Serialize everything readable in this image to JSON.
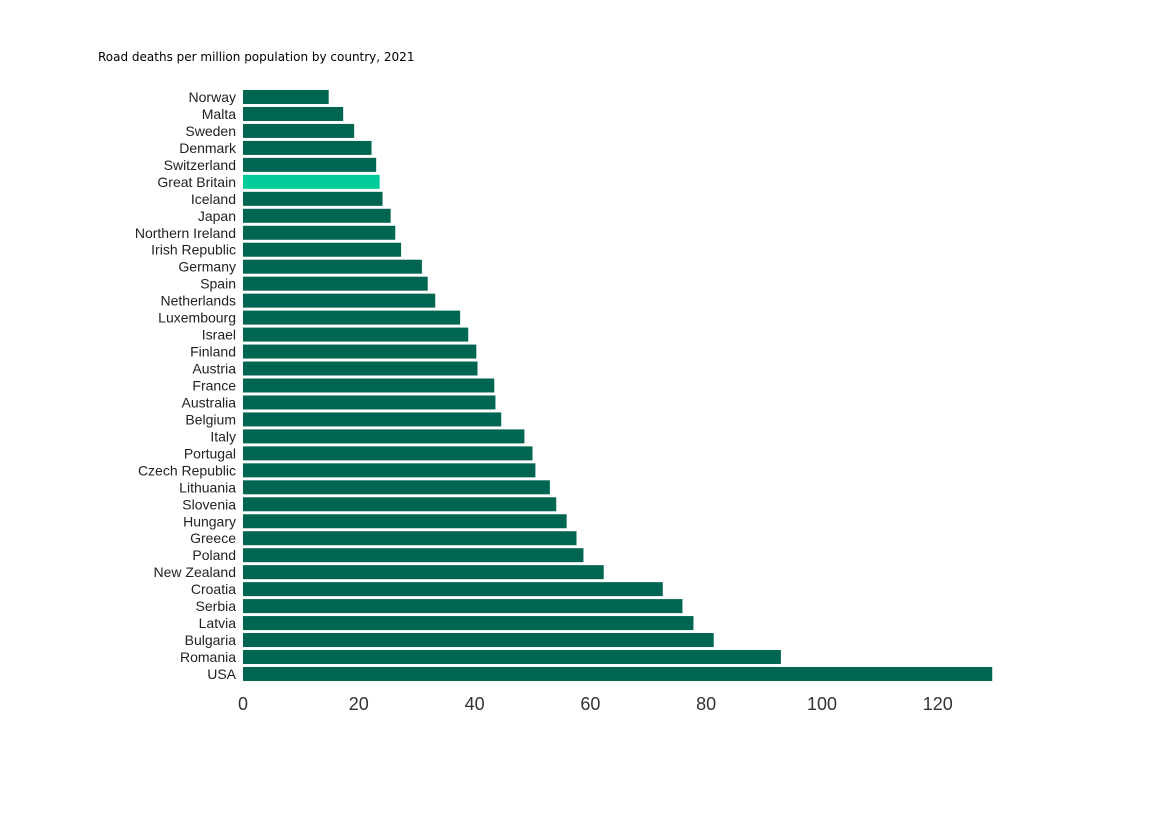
{
  "chart_data": {
    "type": "bar",
    "orientation": "horizontal",
    "title": "Road deaths per million population by country, 2021",
    "xlabel": "",
    "ylabel": "",
    "xlim": [
      0,
      130
    ],
    "xticks": [
      0,
      20,
      40,
      60,
      80,
      100,
      120
    ],
    "grid": false,
    "legend": "none",
    "colors": {
      "bar": "#006652",
      "highlight": "#00CC99"
    },
    "highlight_category": "Great Britain",
    "categories": [
      "Norway",
      "Malta",
      "Sweden",
      "Denmark",
      "Switzerland",
      "Great Britain",
      "Iceland",
      "Japan",
      "Northern Ireland",
      "Irish Republic",
      "Germany",
      "Spain",
      "Netherlands",
      "Luxembourg",
      "Israel",
      "Finland",
      "Austria",
      "France",
      "Australia",
      "Belgium",
      "Italy",
      "Portugal",
      "Czech Republic",
      "Lithuania",
      "Slovenia",
      "Hungary",
      "Greece",
      "Poland",
      "New Zealand",
      "Croatia",
      "Serbia",
      "Latvia",
      "Bulgaria",
      "Romania",
      "USA"
    ],
    "values": [
      14.8,
      17.3,
      19.2,
      22.2,
      23.0,
      23.6,
      24.1,
      25.5,
      26.3,
      27.3,
      30.9,
      31.9,
      33.2,
      37.5,
      38.9,
      40.3,
      40.5,
      43.4,
      43.6,
      44.6,
      48.6,
      50.0,
      50.5,
      53.0,
      54.1,
      55.9,
      57.6,
      58.8,
      62.3,
      72.5,
      75.9,
      77.8,
      81.3,
      92.9,
      129.4
    ]
  }
}
